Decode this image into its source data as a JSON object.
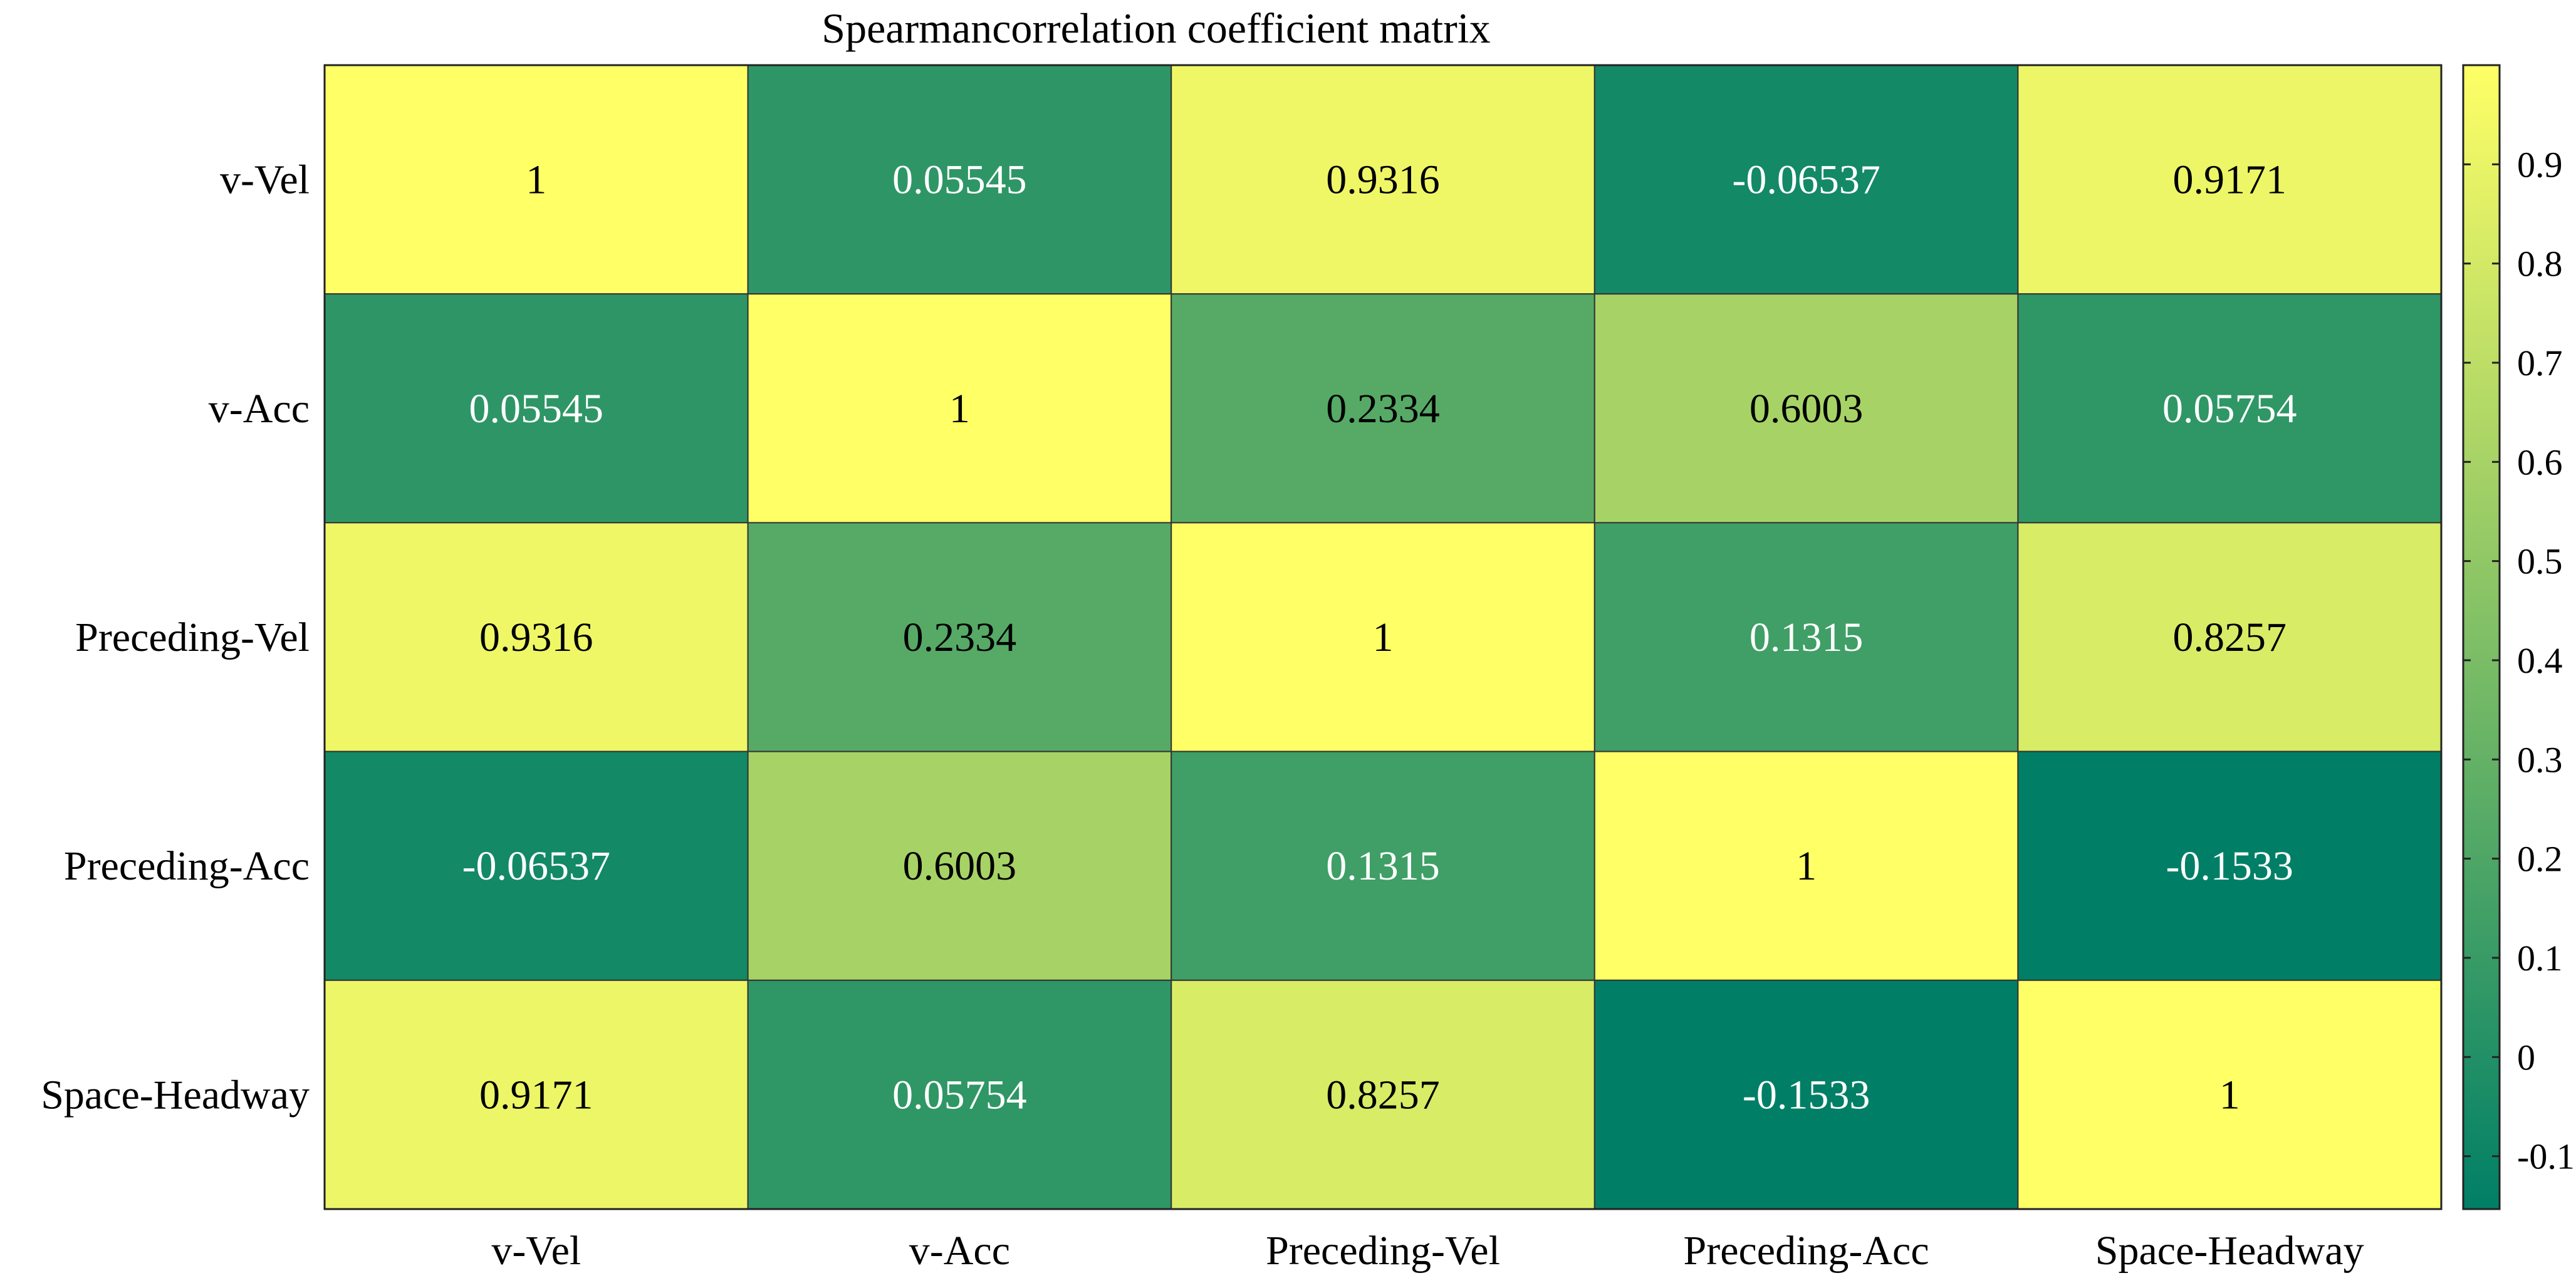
{
  "chart_data": {
    "type": "heatmap",
    "title": "Spearmancorrelation coefficient matrix",
    "x_labels": [
      "v-Vel",
      "v-Acc",
      "Preceding-Vel",
      "Preceding-Acc",
      "Space-Headway"
    ],
    "y_labels": [
      "v-Vel",
      "v-Acc",
      "Preceding-Vel",
      "Preceding-Acc",
      "Space-Headway"
    ],
    "values": [
      [
        1,
        0.05545,
        0.9316,
        -0.06537,
        0.9171
      ],
      [
        0.05545,
        1,
        0.2334,
        0.6003,
        0.05754
      ],
      [
        0.9316,
        0.2334,
        1,
        0.1315,
        0.8257
      ],
      [
        -0.06537,
        0.6003,
        0.1315,
        1,
        -0.1533
      ],
      [
        0.9171,
        0.05754,
        0.8257,
        -0.1533,
        1
      ]
    ],
    "cell_labels": [
      [
        "1",
        "0.05545",
        "0.9316",
        "-0.06537",
        "0.9171"
      ],
      [
        "0.05545",
        "1",
        "0.2334",
        "0.6003",
        "0.05754"
      ],
      [
        "0.9316",
        "0.2334",
        "1",
        "0.1315",
        "0.8257"
      ],
      [
        "-0.06537",
        "0.6003",
        "0.1315",
        "1",
        "-0.1533"
      ],
      [
        "0.9171",
        "0.05754",
        "0.8257",
        "-0.1533",
        "1"
      ]
    ],
    "colormap": "summer",
    "color_low": "#007f66",
    "color_high": "#ffff66",
    "clim": [
      -0.1533,
      1
    ],
    "colorbar": {
      "ticks": [
        -0.1,
        0,
        0.1,
        0.2,
        0.3,
        0.4,
        0.5,
        0.6,
        0.7,
        0.8,
        0.9
      ],
      "tick_labels": [
        "-0.1",
        "0",
        "0.1",
        "0.2",
        "0.3",
        "0.4",
        "0.5",
        "0.6",
        "0.7",
        "0.8",
        "0.9"
      ],
      "location": "right"
    },
    "label_threshold": 0.2,
    "label_color_dark": "#000000",
    "label_color_light": "#ffffff",
    "grid_color": "#333333"
  }
}
